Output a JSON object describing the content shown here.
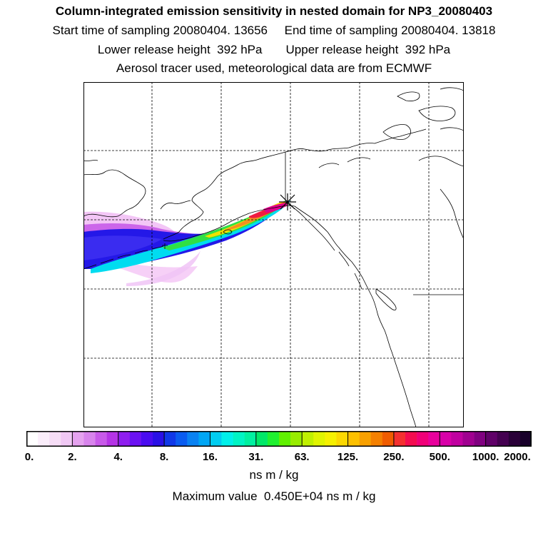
{
  "header": {
    "title": "Column-integrated emission sensitivity in nested domain for NP3_20080403",
    "line1": "Start time of sampling 20080404. 13656     End time of sampling 20080404. 13818",
    "line2": "Lower release height  392 hPa       Upper release height  392 hPa",
    "line3": "Aerosol tracer used, meteorological data are from ECMWF"
  },
  "colorbar": {
    "tick_labels": [
      "0.",
      "2.",
      "4.",
      "8.",
      "16.",
      "31.",
      "63.",
      "125.",
      "250.",
      "500.",
      "1000.",
      "2000."
    ],
    "colors": [
      "#ffffff",
      "#fbeefb",
      "#f6ddf6",
      "#f0c8f4",
      "#e5a2ef",
      "#d884ec",
      "#c85ae9",
      "#b534e6",
      "#8f1eef",
      "#6b12f2",
      "#4a0cf0",
      "#2a10e6",
      "#1038e8",
      "#0a5cf0",
      "#0a82f2",
      "#00a6f4",
      "#00cdf0",
      "#00f0ea",
      "#00f4c4",
      "#00f0a0",
      "#00e868",
      "#20f030",
      "#60f000",
      "#98ec00",
      "#c0f000",
      "#e0f400",
      "#f6f000",
      "#fcd800",
      "#fcc000",
      "#f8a000",
      "#f48000",
      "#f05c00",
      "#f43030",
      "#f40c50",
      "#f00078",
      "#e8009c",
      "#d800a8",
      "#c000a0",
      "#a00090",
      "#800080",
      "#600068",
      "#440050",
      "#2a0038",
      "#18002a"
    ],
    "units": "ns m / kg"
  },
  "footer": {
    "max_value": "Maximum value  0.450E+04 ns m / kg"
  },
  "map": {
    "release_marker": "release-point-x-marker",
    "grid": true,
    "plume_colors": {
      "outer": "#f0b0f4",
      "violet": "#c850e6",
      "blue": "#1a1ae8",
      "cyan": "#00e0f0",
      "green": "#30e040",
      "yellow": "#f0e000",
      "orange": "#f09020",
      "red": "#f01c40",
      "magenta": "#e0008c"
    }
  }
}
